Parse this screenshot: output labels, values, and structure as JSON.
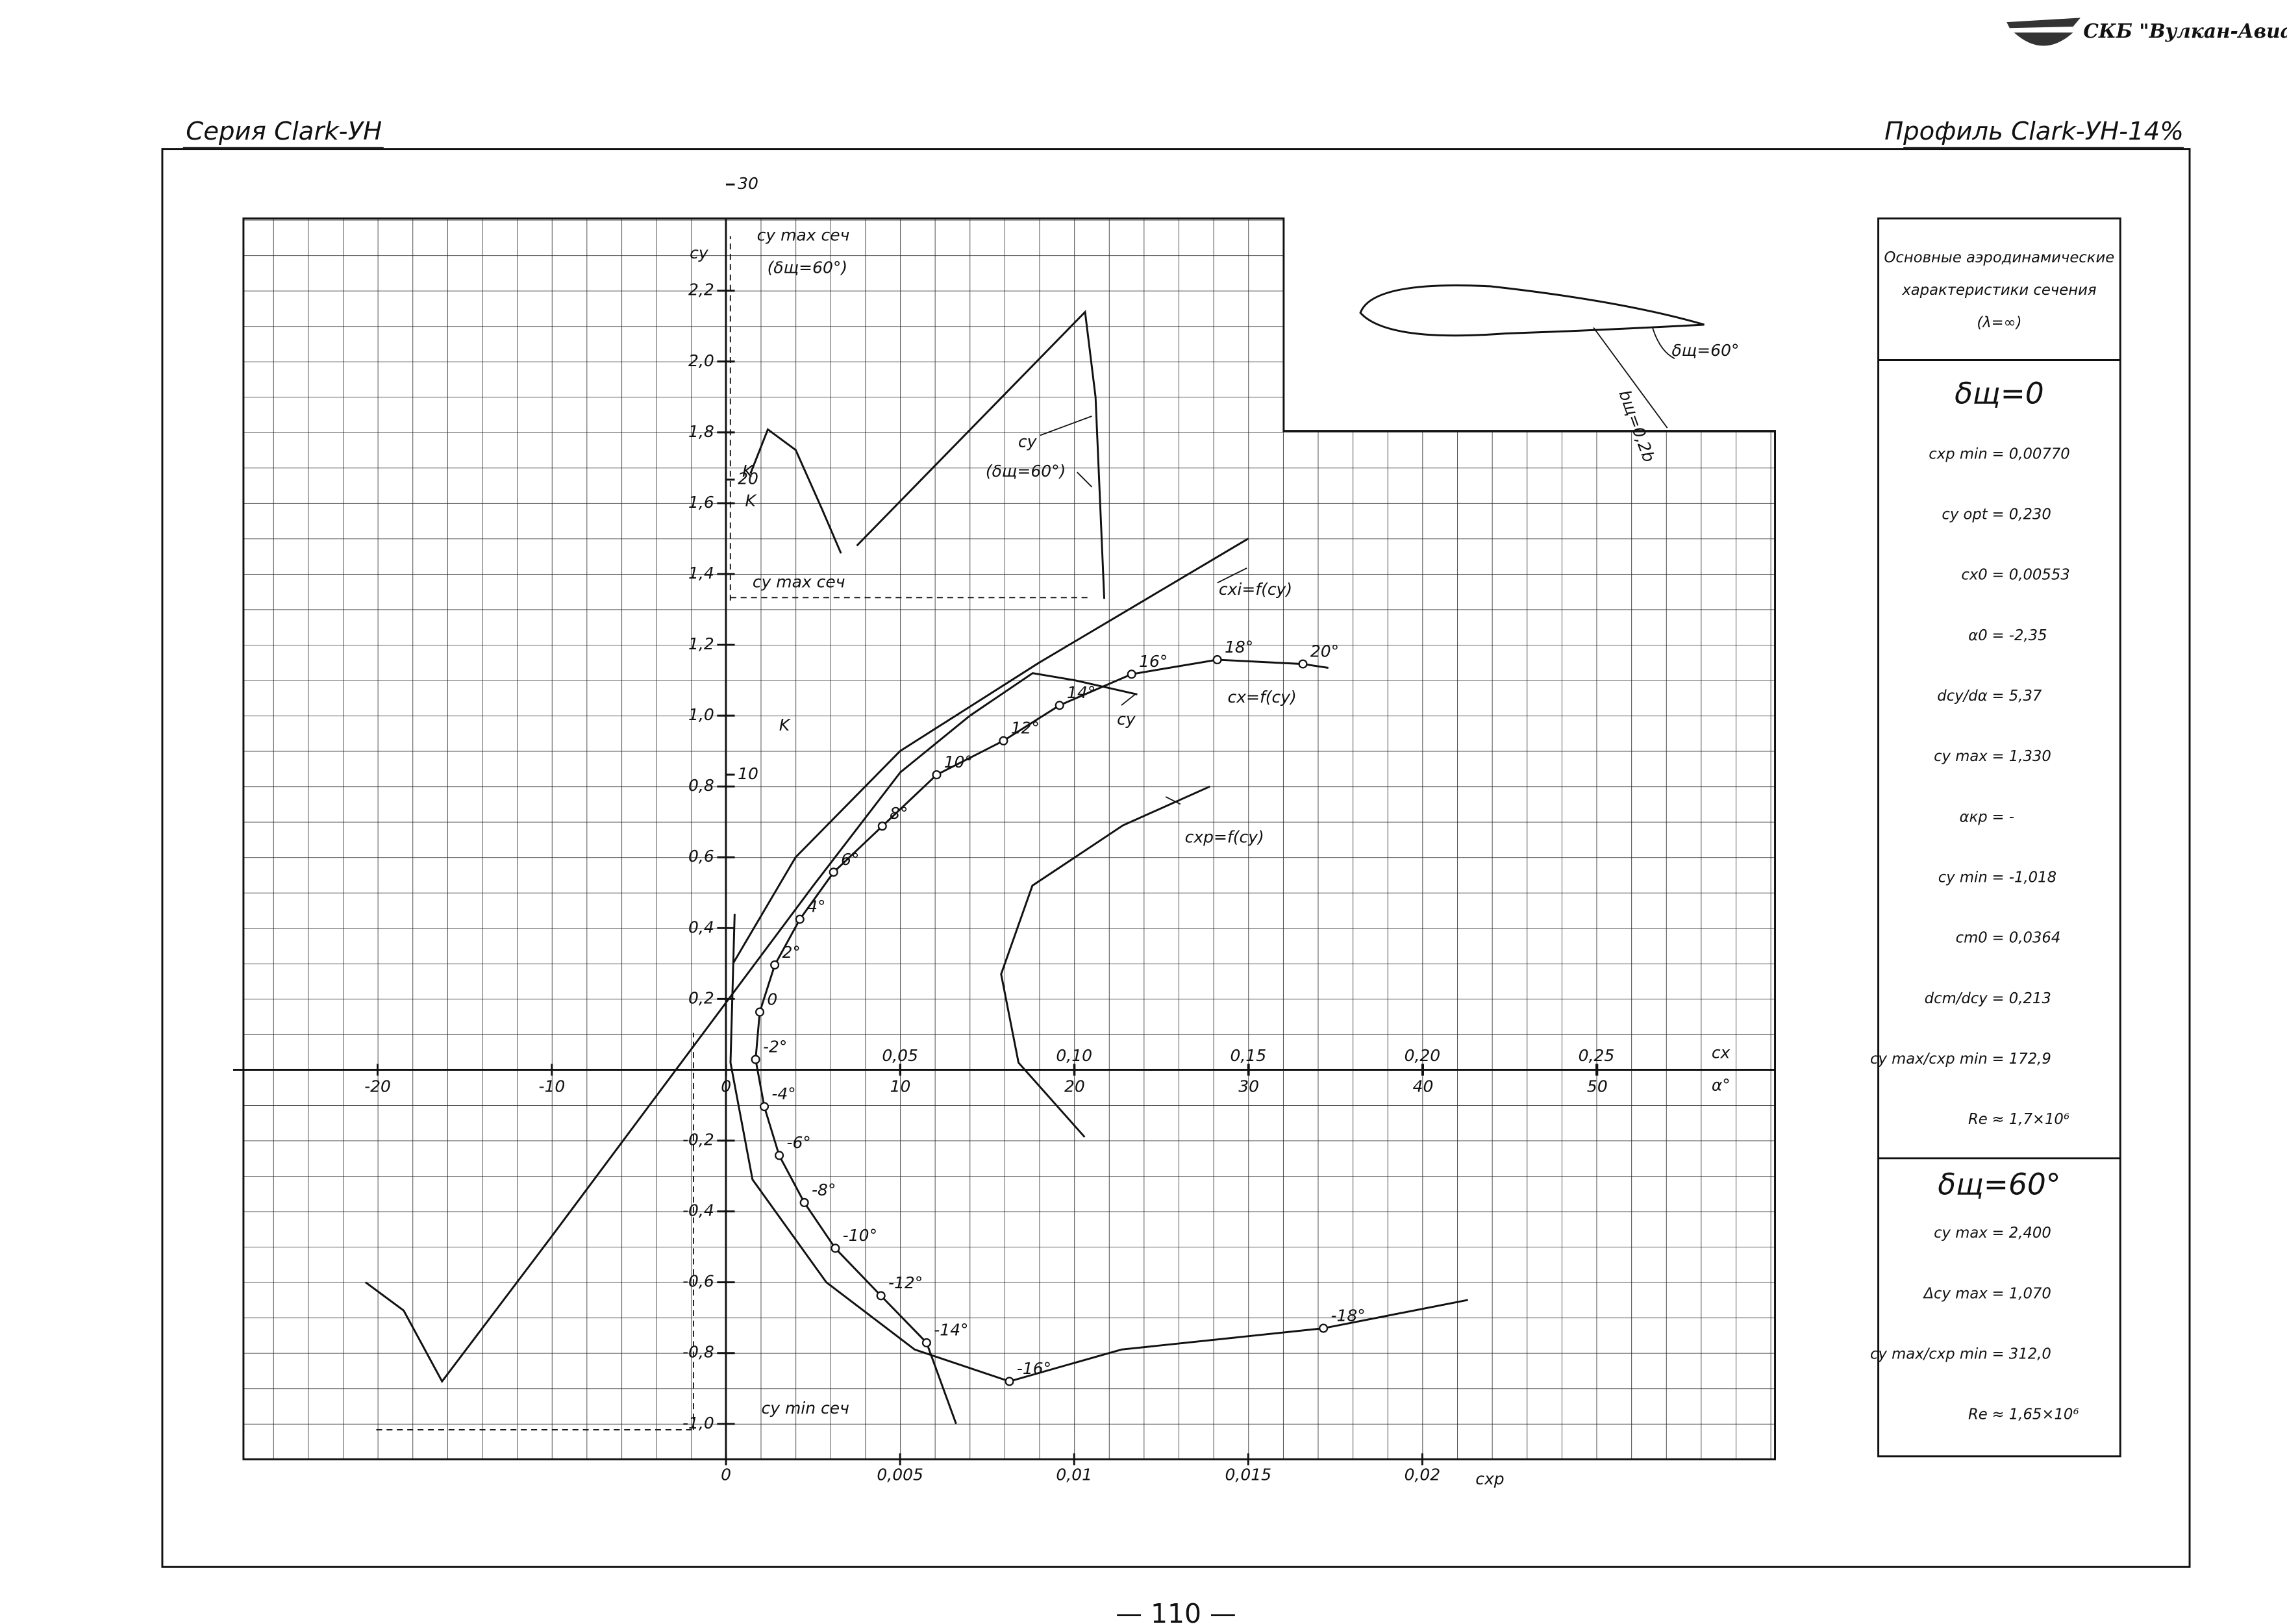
{
  "header": {
    "company": "СКБ \"Вулкан-Авиа\"",
    "series": "Серия Clark-УН",
    "profile": "Профиль Clark-УН-14%",
    "page": "— 110 —"
  },
  "annotations": [
    "cy max сеч",
    "(δщ=60°)",
    "cy",
    "(δщ=60°)",
    "K",
    "cy max сеч",
    "cxi=f(cy)",
    "cx=f(cy)",
    "cy",
    "K",
    "cxp=f(cy)",
    "cy min сеч",
    "δщ=60°",
    "bщ=0,2b"
  ],
  "panel": {
    "title": [
      "Основные аэродинамические",
      "характеристики сечения",
      "(λ=∞)"
    ],
    "sections": [
      {
        "title": "δщ=0",
        "rows": [
          {
            "label": "cxp min",
            "value": "= 0,00770"
          },
          {
            "label": "cy opt",
            "value": "= 0,230"
          },
          {
            "label": "cx0",
            "value": "= 0,00553"
          },
          {
            "label": "α0",
            "value": "= -2,35"
          },
          {
            "label": "dcy/dα",
            "value": "= 5,37"
          },
          {
            "label": "cy max",
            "value": "= 1,330"
          },
          {
            "label": "αкр",
            "value": "= -"
          },
          {
            "label": "cy min",
            "value": "= -1,018"
          },
          {
            "label": "cm0",
            "value": "= 0,0364"
          },
          {
            "label": "dcm/dcy",
            "value": "= 0,213"
          },
          {
            "label": "cy max/cxp min",
            "value": "= 172,9"
          },
          {
            "label": "Re",
            "value": "≈ 1,7×10⁶"
          }
        ]
      },
      {
        "title": "δщ=60°",
        "rows": [
          {
            "label": "cy max",
            "value": "= 2,400"
          },
          {
            "label": "Δcy max",
            "value": "= 1,070"
          },
          {
            "label": "cy max/cxp min",
            "value": "= 312,0"
          },
          {
            "label": "Re",
            "value": "≈ 1,65×10⁶"
          }
        ]
      }
    ]
  },
  "chart_data": [
    {
      "type": "line",
      "ylabel": "cy",
      "xlabel": "α°",
      "y2label": "K",
      "xlim": [
        -27.7,
        60.2
      ],
      "ylim": [
        -1.1,
        2.4
      ],
      "y2lim": [
        -13.2,
        28.8
      ],
      "xticks": [
        -20,
        -10,
        0,
        10,
        20,
        30,
        40,
        50
      ],
      "yticks": [
        {
          "value": 2.2,
          "label": "2,2"
        },
        {
          "value": 2.0,
          "label": "2,0"
        },
        {
          "value": 1.8,
          "label": "1,8"
        },
        {
          "value": 1.6,
          "label": "1,6"
        },
        {
          "value": 1.4,
          "label": "1,4"
        },
        {
          "value": 1.2,
          "label": "1,2"
        },
        {
          "value": 1.0,
          "label": "1,0"
        },
        {
          "value": 0.8,
          "label": "0,8"
        },
        {
          "value": 0.6,
          "label": "0,6"
        },
        {
          "value": 0.4,
          "label": "0,4"
        },
        {
          "value": 0.2,
          "label": "0,2"
        },
        {
          "value": -0.2,
          "label": "-0,2"
        },
        {
          "value": -0.4,
          "label": "-0,4"
        },
        {
          "value": -0.6,
          "label": "-0,6"
        },
        {
          "value": -0.8,
          "label": "-0,8"
        },
        {
          "value": -1.0,
          "label": "-1,0"
        }
      ],
      "y2ticks": [
        10,
        20,
        30
      ],
      "grid": true,
      "series": [
        {
          "color": "#111111",
          "x": [
            -20.7,
            -18.5,
            -16.3,
            -10,
            0,
            5,
            10,
            14,
            17.6,
            20,
            23.6
          ],
          "values": [
            -0.6,
            -0.68,
            -0.88,
            -0.47,
            0.19,
            0.52,
            0.84,
            1.0,
            1.12,
            1.1,
            1.06
          ]
        },
        {
          "color": "#111111",
          "x": [
            7.5,
            20.6,
            21.2,
            21.7
          ],
          "values": [
            1.48,
            2.14,
            1.9,
            1.33
          ]
        },
        {
          "color": "#111111",
          "axis": "y2",
          "x": [
            1.4,
            2.4,
            4,
            5.5,
            6.6
          ],
          "values": [
            20.2,
            21.7,
            21,
            19,
            17.5
          ]
        }
      ]
    },
    {
      "type": "line",
      "xlabel": "cx",
      "xlim": [
        -0.1386,
        0.3013
      ],
      "ylim": [
        -1.1,
        2.4
      ],
      "xticks": [
        {
          "value": 0.05,
          "label": "0,05"
        },
        {
          "value": 0.1,
          "label": "0,10"
        },
        {
          "value": 0.15,
          "label": "0,15"
        },
        {
          "value": 0.2,
          "label": "0,20"
        },
        {
          "value": 0.25,
          "label": "0,25"
        }
      ],
      "series": [
        {
          "color": "#111111",
          "x": [
            0.0661,
            0.0576,
            0.0445,
            0.0314,
            0.0225,
            0.0153,
            0.011,
            0.0085,
            0.0097,
            0.014,
            0.0212,
            0.0309,
            0.0449,
            0.0605,
            0.0797,
            0.0958,
            0.1165,
            0.1411,
            0.1657,
            0.173
          ],
          "values": [
            -1.0,
            -0.771,
            -0.638,
            -0.504,
            -0.375,
            -0.242,
            -0.104,
            0.029,
            0.163,
            0.296,
            0.425,
            0.558,
            0.688,
            0.833,
            0.929,
            1.029,
            1.117,
            1.158,
            1.146,
            1.135
          ],
          "point_labels": [
            null,
            "-14°",
            "-12°",
            "-10°",
            "-8°",
            "-6°",
            "-4°",
            "-2°",
            "0",
            "2°",
            "4°",
            "6°",
            "8°",
            "10°",
            "12°",
            "14°",
            "16°",
            "18°",
            "20°",
            null
          ]
        },
        {
          "color": "#111111",
          "x": [
            0.002,
            0.02,
            0.05,
            0.09,
            0.15
          ],
          "values": [
            0.3,
            0.6,
            0.9,
            1.15,
            1.5
          ]
        }
      ]
    },
    {
      "type": "line",
      "xlabel": "cxp",
      "xlim": [
        -0.01386,
        0.03013
      ],
      "ylim": [
        -1.1,
        2.4
      ],
      "xticks": [
        0,
        {
          "value": 0.005,
          "label": "0,005"
        },
        {
          "value": 0.01,
          "label": "0,01"
        },
        {
          "value": 0.015,
          "label": "0,015"
        },
        {
          "value": 0.02,
          "label": "0,02"
        }
      ],
      "series": [
        {
          "color": "#111111",
          "x": [
            0.00025,
            0.00013,
            0.00076,
            0.00288,
            0.00542,
            0.00814,
            0.01136,
            0.01716,
            0.02131
          ],
          "values": [
            0.44,
            0.02,
            -0.31,
            -0.6,
            -0.79,
            -0.88,
            -0.79,
            -0.73,
            -0.65
          ],
          "point_labels": [
            null,
            null,
            null,
            null,
            null,
            "-16°",
            null,
            "-18°",
            null
          ]
        },
        {
          "color": "#111111",
          "x": [
            0.0103,
            0.0084,
            0.0079,
            0.0088,
            0.0114,
            0.0139
          ],
          "values": [
            -0.19,
            0.02,
            0.27,
            0.52,
            0.69,
            0.8
          ]
        }
      ]
    }
  ]
}
